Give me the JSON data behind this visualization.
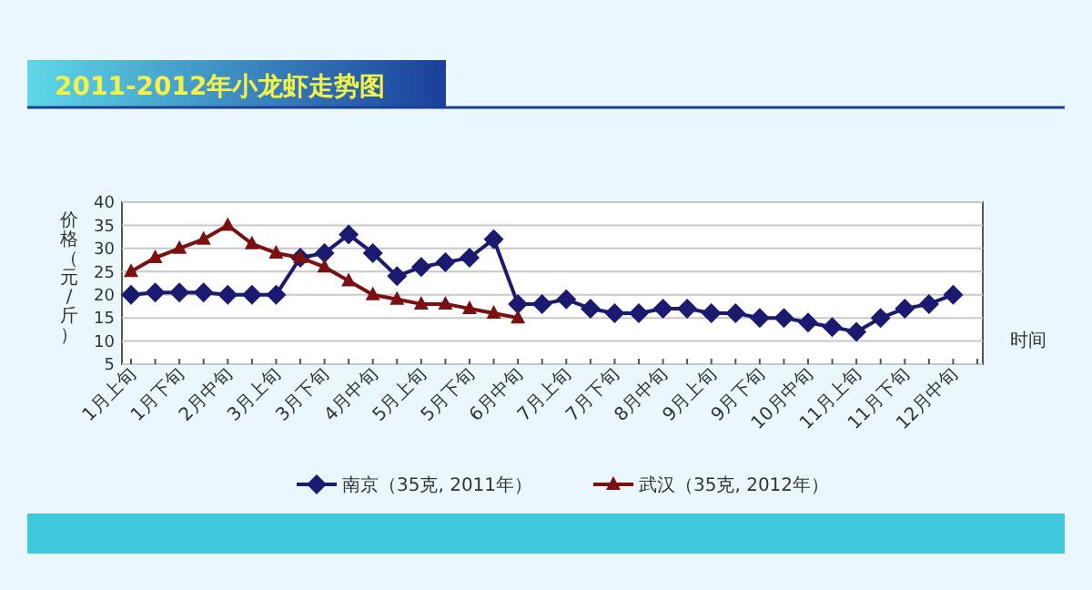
{
  "chart_data": {
    "type": "line",
    "title": "2011-2012年小龙虾走势图",
    "xlabel": "时间",
    "ylabel": "价格（元/斤）",
    "categories": [
      "1月上旬",
      null,
      "1月下旬",
      null,
      "2月中旬",
      null,
      "3月上旬",
      null,
      "3月下旬",
      null,
      "4月中旬",
      null,
      "5月上旬",
      null,
      "5月下旬",
      null,
      "6月中旬",
      null,
      "7月上旬",
      null,
      "7月下旬",
      null,
      "8月中旬",
      null,
      "9月上旬",
      null,
      "9月下旬",
      null,
      "10月中旬",
      null,
      "11月上旬",
      null,
      "11月下旬",
      null,
      "12月中旬",
      null
    ],
    "series": [
      {
        "name": "南京（35克, 2011年）",
        "color": "#1a1a70",
        "marker": "diamond",
        "values": [
          20,
          20.5,
          20.5,
          20.5,
          20,
          20,
          20,
          28,
          29,
          33,
          29,
          24,
          26,
          27,
          28,
          32,
          18,
          18,
          19,
          17,
          16,
          16,
          17,
          17,
          16,
          16,
          15,
          15,
          14,
          13,
          12,
          15,
          17,
          18,
          20,
          null
        ]
      },
      {
        "name": "武汉（35克, 2012年）",
        "color": "#7a1010",
        "marker": "triangle",
        "values": [
          25,
          28,
          30,
          32,
          35,
          31,
          29,
          28,
          26,
          23,
          20,
          19,
          18,
          18,
          17,
          16,
          15,
          null,
          null,
          null,
          null,
          null,
          null,
          null,
          null,
          null,
          null,
          null,
          null,
          null,
          null,
          null,
          null,
          null,
          null,
          null
        ]
      }
    ],
    "ylim": [
      5,
      40
    ],
    "yticks": [
      5,
      10,
      15,
      20,
      25,
      30,
      35,
      40
    ],
    "grid": "y",
    "legend": "bottom",
    "line_style": "solid"
  }
}
